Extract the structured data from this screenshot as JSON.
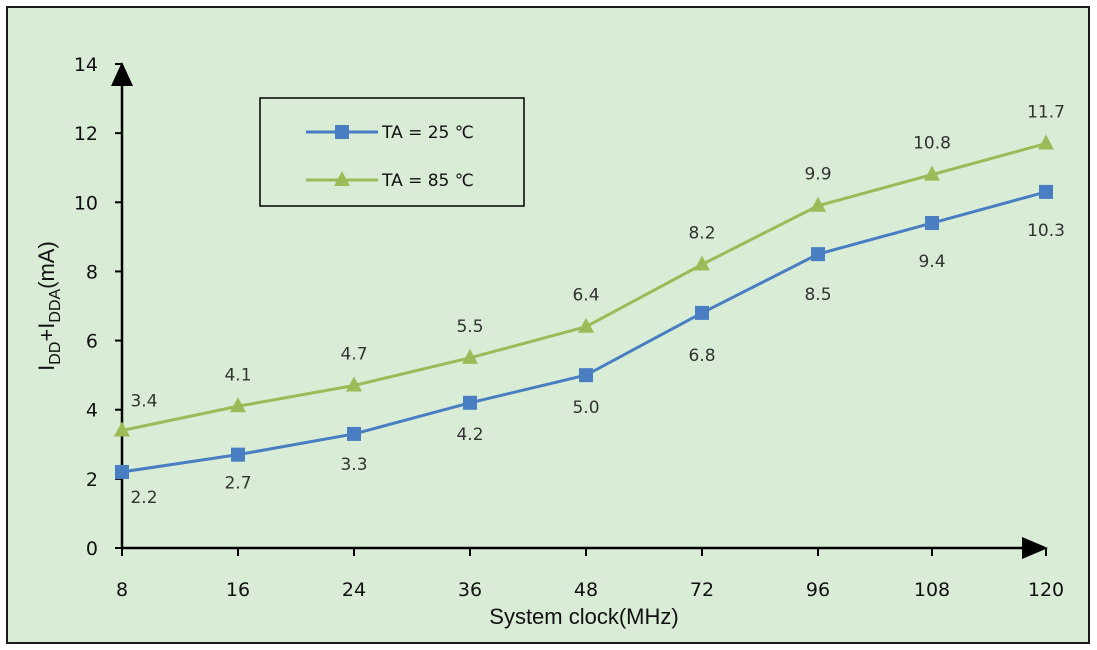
{
  "chart_data": {
    "type": "line",
    "title": "",
    "x_categories": [
      "8",
      "16",
      "24",
      "36",
      "48",
      "72",
      "96",
      "108",
      "120"
    ],
    "xlabel": "System clock(MHz)",
    "ylabel": {
      "parts": [
        {
          "text": "I",
          "sub": false
        },
        {
          "text": "DD",
          "sub": true
        },
        {
          "text": "+I",
          "sub": false
        },
        {
          "text": "DDA",
          "sub": true
        },
        {
          "text": "(mA)",
          "sub": false
        }
      ]
    },
    "ylim": [
      0,
      14
    ],
    "yticks": [
      0,
      2,
      4,
      6,
      8,
      10,
      12,
      14
    ],
    "grid": false,
    "legend_position": "top-left",
    "series": [
      {
        "name": "TA = 25 ℃",
        "marker": "square",
        "color": "#4a7ec2",
        "values": [
          2.2,
          2.7,
          3.3,
          4.2,
          5.0,
          6.8,
          8.5,
          9.4,
          10.3
        ],
        "labels": [
          "2.2",
          "2.7",
          "3.3",
          "4.2",
          "5.0",
          "6.8",
          "8.5",
          "9.4",
          "10.3"
        ]
      },
      {
        "name": "TA = 85 ℃",
        "marker": "triangle",
        "color": "#9bbb59",
        "values": [
          3.4,
          4.1,
          4.7,
          5.5,
          6.4,
          8.2,
          9.9,
          10.8,
          11.7
        ],
        "labels": [
          "3.4",
          "4.1",
          "4.7",
          "5.5",
          "6.4",
          "8.2",
          "9.9",
          "10.8",
          "11.7"
        ]
      }
    ]
  }
}
